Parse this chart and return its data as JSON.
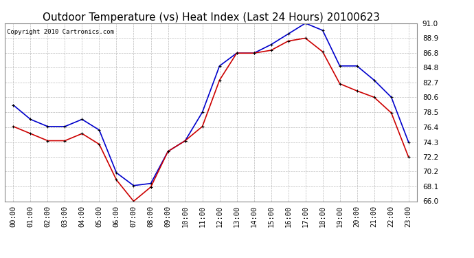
{
  "title": "Outdoor Temperature (vs) Heat Index (Last 24 Hours) 20100623",
  "copyright": "Copyright 2010 Cartronics.com",
  "hours": [
    "00:00",
    "01:00",
    "02:00",
    "03:00",
    "04:00",
    "05:00",
    "06:00",
    "07:00",
    "08:00",
    "09:00",
    "10:00",
    "11:00",
    "12:00",
    "13:00",
    "14:00",
    "15:00",
    "16:00",
    "17:00",
    "18:00",
    "19:00",
    "20:00",
    "21:00",
    "22:00",
    "23:00"
  ],
  "blue_data": [
    79.5,
    77.5,
    76.5,
    76.5,
    77.5,
    76.0,
    70.0,
    68.2,
    68.5,
    73.0,
    74.5,
    78.5,
    85.0,
    86.8,
    86.8,
    88.0,
    89.5,
    91.0,
    90.0,
    85.0,
    85.0,
    83.0,
    80.6,
    74.3
  ],
  "red_data": [
    76.5,
    75.5,
    74.5,
    74.5,
    75.5,
    74.0,
    69.0,
    66.0,
    68.0,
    73.0,
    74.5,
    76.5,
    83.0,
    86.8,
    86.8,
    87.2,
    88.5,
    88.9,
    87.0,
    82.5,
    81.5,
    80.6,
    78.4,
    72.2
  ],
  "ylim": [
    66.0,
    91.0
  ],
  "yticks": [
    66.0,
    68.1,
    70.2,
    72.2,
    74.3,
    76.4,
    78.5,
    80.6,
    82.7,
    84.8,
    86.8,
    88.9,
    91.0
  ],
  "blue_color": "#0000cc",
  "red_color": "#cc0000",
  "bg_color": "#ffffff",
  "grid_color": "#bbbbbb",
  "title_fontsize": 11,
  "copyright_fontsize": 6.5,
  "tick_fontsize": 7.5
}
